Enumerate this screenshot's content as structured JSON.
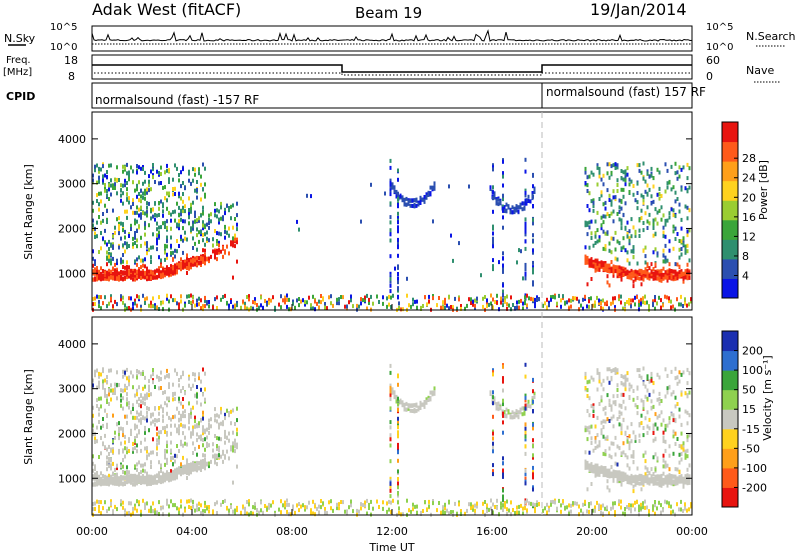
{
  "header": {
    "station": "Adak West (fitACF)",
    "beam": "Beam 19",
    "date": "19/Jan/2014"
  },
  "noise_panel": {
    "left_label": "N.Sky",
    "right_label": "N.Search",
    "left_ticks": [
      "10^5",
      "10^0"
    ],
    "right_ticks": [
      "10^5",
      "10^0"
    ]
  },
  "freq_panel": {
    "left_label_1": "Freq.",
    "left_label_2": "[MHz]",
    "right_label": "Nave",
    "left_ticks": [
      "18",
      "8"
    ],
    "right_ticks": [
      "60",
      "0"
    ]
  },
  "cpid_panel": {
    "label": "CPID",
    "segment_1": "normalsound (fast) -157 RF",
    "segment_2": "normalsound (fast) 157 RF",
    "switch_hour": 18
  },
  "chart_data": [
    {
      "type": "heatmap",
      "name": "power",
      "ylabel": "Slant Range [km]",
      "yticks": [
        1000,
        2000,
        3000,
        4000
      ],
      "ylim": [
        180,
        4600
      ],
      "xlim": [
        0,
        24
      ],
      "colorbar_label": "Power [dB]",
      "colorbar_ticks": [
        "4",
        "8",
        "12",
        "16",
        "20",
        "24",
        "28"
      ],
      "colorbar_colors": [
        "#0a14e6",
        "#2b4fb0",
        "#2f8f6f",
        "#3aa53a",
        "#9acd32",
        "#ffd21e",
        "#ff9f1a",
        "#ff5a1a",
        "#e8140f"
      ]
    },
    {
      "type": "heatmap",
      "name": "velocity",
      "ylabel": "Slant Range [km]",
      "yticks": [
        1000,
        2000,
        3000,
        4000
      ],
      "ylim": [
        180,
        4600
      ],
      "xlim": [
        0,
        24
      ],
      "xlabel": "Time UT",
      "xticks": [
        "00:00",
        "04:00",
        "08:00",
        "12:00",
        "16:00",
        "20:00",
        "00:00"
      ],
      "colorbar_label": "Velocity [m s⁻¹]",
      "colorbar_ticks": [
        "200",
        "100",
        "50",
        "15",
        "-15",
        "-50",
        "-100",
        "-200"
      ],
      "colorbar_colors": [
        "#1b2fb0",
        "#2e6fd0",
        "#3aa53a",
        "#8fd14f",
        "#c8c8c0",
        "#ffd21e",
        "#ff9f1a",
        "#ff5a1a",
        "#e8140f"
      ]
    }
  ]
}
